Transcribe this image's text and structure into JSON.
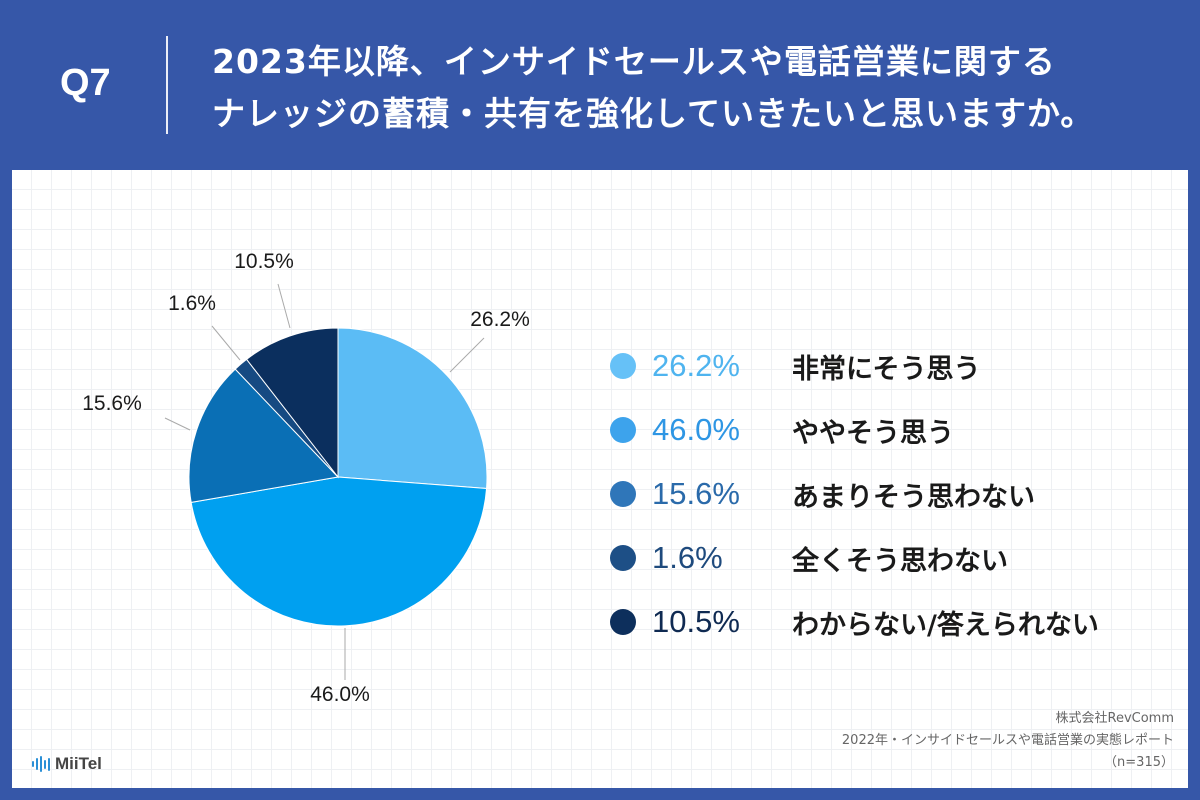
{
  "header": {
    "q_number": "Q7",
    "title_line1": "2023年以降、インサイドセールスや電話営業に関する",
    "title_line2": "ナレッジの蓄積・共有を強化していきたいと思いますか。"
  },
  "chart_data": {
    "type": "pie",
    "title": "",
    "slices": [
      {
        "name": "非常にそう思う",
        "value": 26.2,
        "label": "26.2%",
        "color": "#5bbcf5"
      },
      {
        "name": "ややそう思う",
        "value": 46.0,
        "label": "46.0%",
        "color": "#00a0f0"
      },
      {
        "name": "あまりそう思わない",
        "value": 15.6,
        "label": "15.6%",
        "color": "#0a6fb5"
      },
      {
        "name": "全くそう思わない",
        "value": 1.6,
        "label": "1.6%",
        "color": "#164a82"
      },
      {
        "name": "わからない/答えられない",
        "value": 10.5,
        "label": "10.5%",
        "color": "#0b2f5e"
      }
    ],
    "legend_placement": "right"
  },
  "legend": {
    "items": [
      {
        "pct": "26.2%",
        "label": "非常にそう思う",
        "dot_color": "#66c1f7",
        "text_color": "#4fb4ef"
      },
      {
        "pct": "46.0%",
        "label": "ややそう思う",
        "dot_color": "#3da3ec",
        "text_color": "#2e96e4"
      },
      {
        "pct": "15.6%",
        "label": "あまりそう思わない",
        "dot_color": "#2f76b9",
        "text_color": "#2a6aaa"
      },
      {
        "pct": "1.6%",
        "label": "全くそう思わない",
        "dot_color": "#1d4f86",
        "text_color": "#1e4a7d"
      },
      {
        "pct": "10.5%",
        "label": "わからない/答えられない",
        "dot_color": "#0d2f5c",
        "text_color": "#0f2a52"
      }
    ]
  },
  "source": {
    "line1": "株式会社RevComm",
    "line2": "2022年・インサイドセールスや電話営業の実態レポート",
    "line3": "（n=315）"
  },
  "logo": {
    "text": "MiiTel",
    "icon": "sound-wave-icon"
  }
}
